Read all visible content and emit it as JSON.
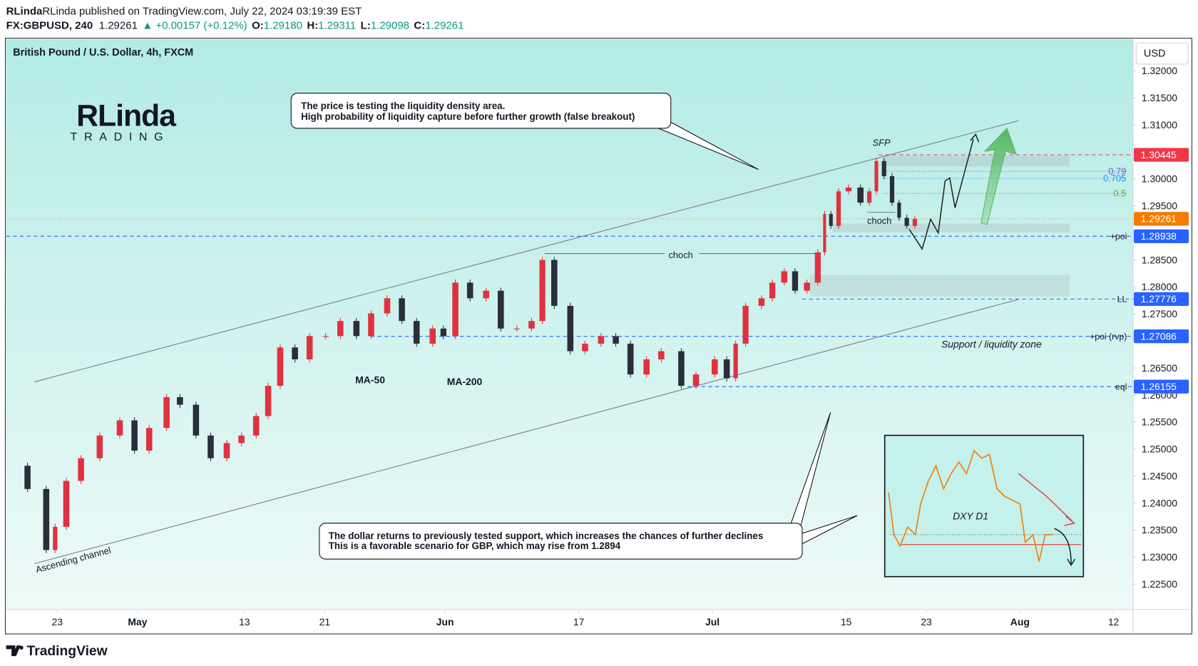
{
  "header": {
    "publisher": "RLinda published on TradingView.com, July 22, 2024 03:19:39 EST",
    "symbol": "FX:GBPUSD, 240",
    "last": "1.29261",
    "change": "▲ +0.00157 (+0.12%)",
    "ohlc": [
      {
        "key": "O:",
        "value": "1.29180"
      },
      {
        "key": "H:",
        "value": "1.29311"
      },
      {
        "key": "L:",
        "value": "1.29098"
      },
      {
        "key": "C:",
        "value": "1.29261"
      }
    ]
  },
  "logo": {
    "name": "RLinda",
    "sub": "TRADING"
  },
  "footer": "TradingView",
  "chart_data": {
    "type": "candlestick",
    "title": "British Pound / U.S. Dollar, 4h, FXCM",
    "currency": "USD",
    "up_color": "#e0313f",
    "down_color": "#2a2e39",
    "x": [
      -3.7,
      -2,
      -0.6,
      0,
      0.9,
      2,
      3.4,
      4.9,
      6,
      7.1,
      8.4,
      9.4,
      10.6,
      11.7,
      12.9,
      14,
      15.1,
      16,
      16.9,
      18,
      19.1,
      20.3,
      21.4,
      22.6,
      23.7,
      24.9,
      26,
      27.1,
      28.3,
      29.1,
      30,
      31.1,
      32.3,
      33.4,
      34.6,
      35.7,
      36.5,
      37.4,
      38.6,
      39.7,
      40.9,
      42,
      43.1,
      44.3,
      45.4,
      46.9,
      48,
      49.4,
      50.3,
      50.9,
      51.7,
      52.9,
      53.7,
      54.6,
      55.4,
      56.3,
      57.1,
      57.5,
      58,
      58.6,
      59.4,
      60.3,
      60.9,
      61.4,
      62,
      62.6,
      63.1,
      63.7,
      64.3
    ],
    "values": [
      1.2469,
      1.2426,
      1.2313,
      1.2356,
      1.2441,
      1.2483,
      1.2525,
      1.2553,
      1.2497,
      1.2539,
      1.2596,
      1.2582,
      1.2525,
      1.2483,
      1.2511,
      1.2525,
      1.2561,
      1.2617,
      1.2688,
      1.2666,
      1.2709,
      1.2709,
      1.2737,
      1.2709,
      1.2751,
      1.2779,
      1.2737,
      1.2695,
      1.2723,
      1.2709,
      1.2808,
      1.2779,
      1.2793,
      1.2723,
      1.2723,
      1.2737,
      1.285,
      1.2765,
      1.2681,
      1.2695,
      1.2709,
      1.2695,
      1.2638,
      1.2666,
      1.2681,
      1.2617,
      1.2638,
      1.2666,
      1.2631,
      1.2695,
      1.2765,
      1.2779,
      1.2808,
      1.2829,
      1.2793,
      1.2808,
      1.2864,
      1.2935,
      1.2913,
      1.2977,
      1.2984,
      1.2956,
      1.2977,
      1.3033,
      1.3005,
      1.2956,
      1.2928,
      1.2913,
      1.2926
    ],
    "xlim": [
      -3.83,
      80.46
    ],
    "ylim": [
      1.2203,
      1.3259
    ],
    "xticks": [
      {
        "value": 0,
        "label": "23"
      },
      {
        "value": 6,
        "label": "May"
      },
      {
        "value": 14,
        "label": "13"
      },
      {
        "value": 20,
        "label": "21"
      },
      {
        "value": 29,
        "label": "Jun"
      },
      {
        "value": 39,
        "label": "17"
      },
      {
        "value": 49,
        "label": "Jul"
      },
      {
        "value": 59,
        "label": "15"
      },
      {
        "value": 65,
        "label": "23"
      },
      {
        "value": 72,
        "label": "Aug"
      },
      {
        "value": 79,
        "label": "12"
      }
    ],
    "yticks": [
      {
        "value": 1.32,
        "label": "1.32000"
      },
      {
        "value": 1.315,
        "label": "1.31500"
      },
      {
        "value": 1.31,
        "label": "1.31000"
      },
      {
        "value": 1.3,
        "label": "1.30000"
      },
      {
        "value": 1.295,
        "label": "1.29500"
      },
      {
        "value": 1.285,
        "label": "1.28500"
      },
      {
        "value": 1.28,
        "label": "1.28000"
      },
      {
        "value": 1.275,
        "label": "1.27500"
      },
      {
        "value": 1.265,
        "label": "1.26500"
      },
      {
        "value": 1.26,
        "label": "1.26000"
      },
      {
        "value": 1.255,
        "label": "1.25500"
      },
      {
        "value": 1.25,
        "label": "1.25000"
      },
      {
        "value": 1.245,
        "label": "1.24500"
      },
      {
        "value": 1.24,
        "label": "1.24000"
      },
      {
        "value": 1.235,
        "label": "1.23500"
      },
      {
        "value": 1.23,
        "label": "1.23000"
      },
      {
        "value": 1.225,
        "label": "1.22500"
      }
    ],
    "levels": [
      {
        "value": 1.30445,
        "label": "1.30445",
        "color": "#f23645"
      },
      {
        "value": 1.29261,
        "label": "1.29261",
        "color": "#f57c00"
      },
      {
        "value": 1.28938,
        "label": "1.28938",
        "color": "#2962ff",
        "name": "+poi"
      },
      {
        "value": 1.27776,
        "label": "1.27776",
        "color": "#2962ff",
        "name": "LL"
      },
      {
        "value": 1.27086,
        "label": "1.27086",
        "color": "#2962ff",
        "name": "+poi (rvp)"
      },
      {
        "value": 1.26155,
        "label": "1.26155",
        "color": "#2962ff",
        "name": "eql"
      }
    ],
    "fib": [
      {
        "value": 0.79,
        "price": 1.3014,
        "color": "#7e57c2"
      },
      {
        "value": 0.705,
        "price": 1.3001,
        "color": "#2196f3"
      },
      {
        "value": 0.5,
        "price": 1.2973,
        "color": "#4caf50"
      }
    ],
    "labels": {
      "sfp": "SFP",
      "choch_top": "choch",
      "choch_mid": "choch",
      "support": "Support / liquidity zone",
      "ma50": "MA-50",
      "ma200": "MA-200",
      "channel": "Ascending channel",
      "dxy": "DXY D1"
    },
    "annotations": [
      [
        "The price is testing the liquidity density area.",
        "High probability of liquidity capture before further growth (false breakout)"
      ],
      [
        "The dollar returns to previously tested support, which increases the chances of further declines",
        "This is a favorable scenario for GBP, which may rise from 1.2894"
      ]
    ]
  }
}
